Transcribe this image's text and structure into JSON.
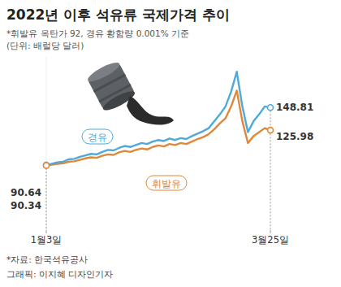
{
  "chart_data": {
    "type": "line",
    "title": "2022년 이후 석유류 국제가격 추이",
    "subtitle": [
      "*휘발유 옥탄가 92, 경유 황함량 0.001% 기준",
      "(단위: 배럴당 달러)"
    ],
    "source": "*자료: 한국석유공사",
    "credit": "그래픽: 이지혜 디자인기자",
    "categories": [
      "1월3일",
      null,
      null,
      null,
      null,
      null,
      null,
      null,
      null,
      null,
      null,
      null,
      null,
      null,
      null,
      null,
      null,
      null,
      null,
      null,
      null,
      null,
      null,
      null,
      null,
      null,
      null,
      null,
      null,
      null,
      null,
      null,
      null,
      null,
      null,
      null,
      null,
      null,
      null,
      null,
      "3월25일"
    ],
    "series": [
      {
        "name": "경유",
        "color": "#4fa9d9",
        "values": [
          90.64,
          92.0,
          93.5,
          94.0,
          96.5,
          97.0,
          99.0,
          100.5,
          102.0,
          101.5,
          104.0,
          106.0,
          105.5,
          108.0,
          110.0,
          109.0,
          111.0,
          113.0,
          112.0,
          114.5,
          116.0,
          115.0,
          117.5,
          116.0,
          118.0,
          117.0,
          120.0,
          122.5,
          125.0,
          128.0,
          135.0,
          142.0,
          150.0,
          165.0,
          185.0,
          150.0,
          124.0,
          135.0,
          142.0,
          150.0,
          148.81
        ],
        "value_labels": [
          "90.64",
          null,
          null,
          null,
          null,
          null,
          null,
          null,
          null,
          null,
          null,
          null,
          null,
          null,
          null,
          null,
          null,
          null,
          null,
          null,
          null,
          null,
          null,
          null,
          null,
          null,
          null,
          null,
          null,
          null,
          null,
          null,
          null,
          null,
          null,
          null,
          null,
          null,
          null,
          null,
          "148.81"
        ]
      },
      {
        "name": "휘발유",
        "color": "#e0873a",
        "values": [
          90.34,
          91.0,
          92.0,
          92.5,
          94.0,
          94.5,
          96.0,
          97.5,
          98.5,
          98.0,
          100.0,
          101.5,
          101.0,
          103.5,
          105.0,
          104.0,
          106.0,
          107.5,
          106.5,
          109.0,
          110.5,
          109.5,
          112.0,
          111.0,
          113.0,
          112.0,
          114.5,
          117.0,
          119.0,
          122.0,
          127.0,
          133.0,
          138.0,
          150.0,
          166.0,
          135.0,
          113.0,
          120.0,
          124.0,
          128.0,
          125.98
        ],
        "value_labels": [
          "90.34",
          null,
          null,
          null,
          null,
          null,
          null,
          null,
          null,
          null,
          null,
          null,
          null,
          null,
          null,
          null,
          null,
          null,
          null,
          null,
          null,
          null,
          null,
          null,
          null,
          null,
          null,
          null,
          null,
          null,
          null,
          null,
          null,
          null,
          null,
          null,
          null,
          null,
          null,
          null,
          "125.98"
        ]
      }
    ],
    "ylim": [
      25,
      200
    ],
    "yticks": [],
    "grid": false,
    "tick_labels": "x",
    "data_labels": true
  }
}
